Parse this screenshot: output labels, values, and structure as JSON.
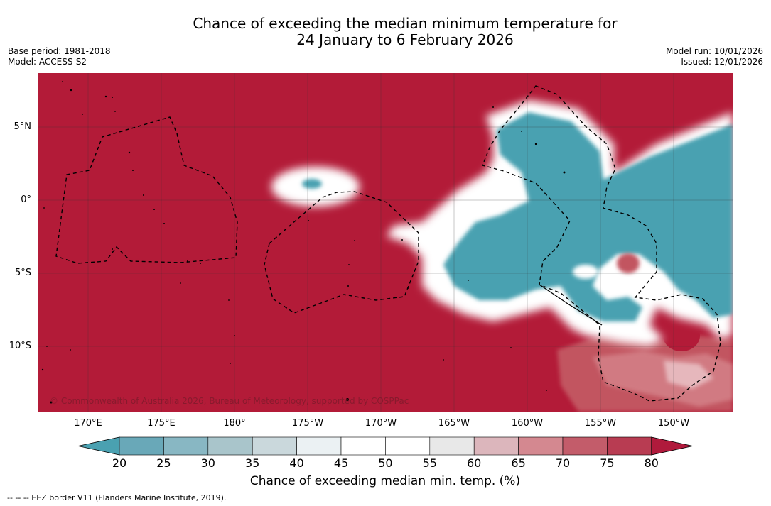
{
  "title_line1": "Chance of exceeding the median minimum temperature for",
  "title_line2": "24 January to 6 February 2026",
  "meta_left": {
    "base_period": "Base period: 1981-2018",
    "model": "Model: ACCESS-S2"
  },
  "meta_right": {
    "model_run": "Model run: 10/01/2026",
    "issued": "Issued: 12/01/2026"
  },
  "map": {
    "lat_labels": [
      "5°N",
      "0°",
      "5°S",
      "10°S"
    ],
    "lon_labels": [
      "170°E",
      "175°E",
      "180°",
      "175°W",
      "170°W",
      "165°W",
      "160°W",
      "155°W",
      "150°W"
    ],
    "copyright": "© Commonwealth of Australia 2026, Bureau of Meteorology, supported by COSPPac",
    "colors": {
      "warm_high": "#b31b38",
      "warm_mid": "#c25560",
      "warm_low": "#d98a90",
      "cool_high": "#4aa1b1",
      "near_normal": "#ffffff"
    }
  },
  "colorbar": {
    "ticks": [
      "20",
      "25",
      "30",
      "35",
      "40",
      "45",
      "50",
      "55",
      "60",
      "65",
      "70",
      "75",
      "80"
    ],
    "colors": [
      "#4aa1b1",
      "#69a8b8",
      "#88b7c3",
      "#a9c5cb",
      "#cad8dc",
      "#ebf1f3",
      "#ffffff",
      "#ffffff",
      "#e8e8e8",
      "#dcb6bc",
      "#d48890",
      "#c35c6a",
      "#b83c52",
      "#b01a3c"
    ],
    "label": "Chance of exceeding median min. temp. (%)"
  },
  "footnote": "-- -- -- EEZ border V11 (Flanders Marine Institute, 2019)."
}
